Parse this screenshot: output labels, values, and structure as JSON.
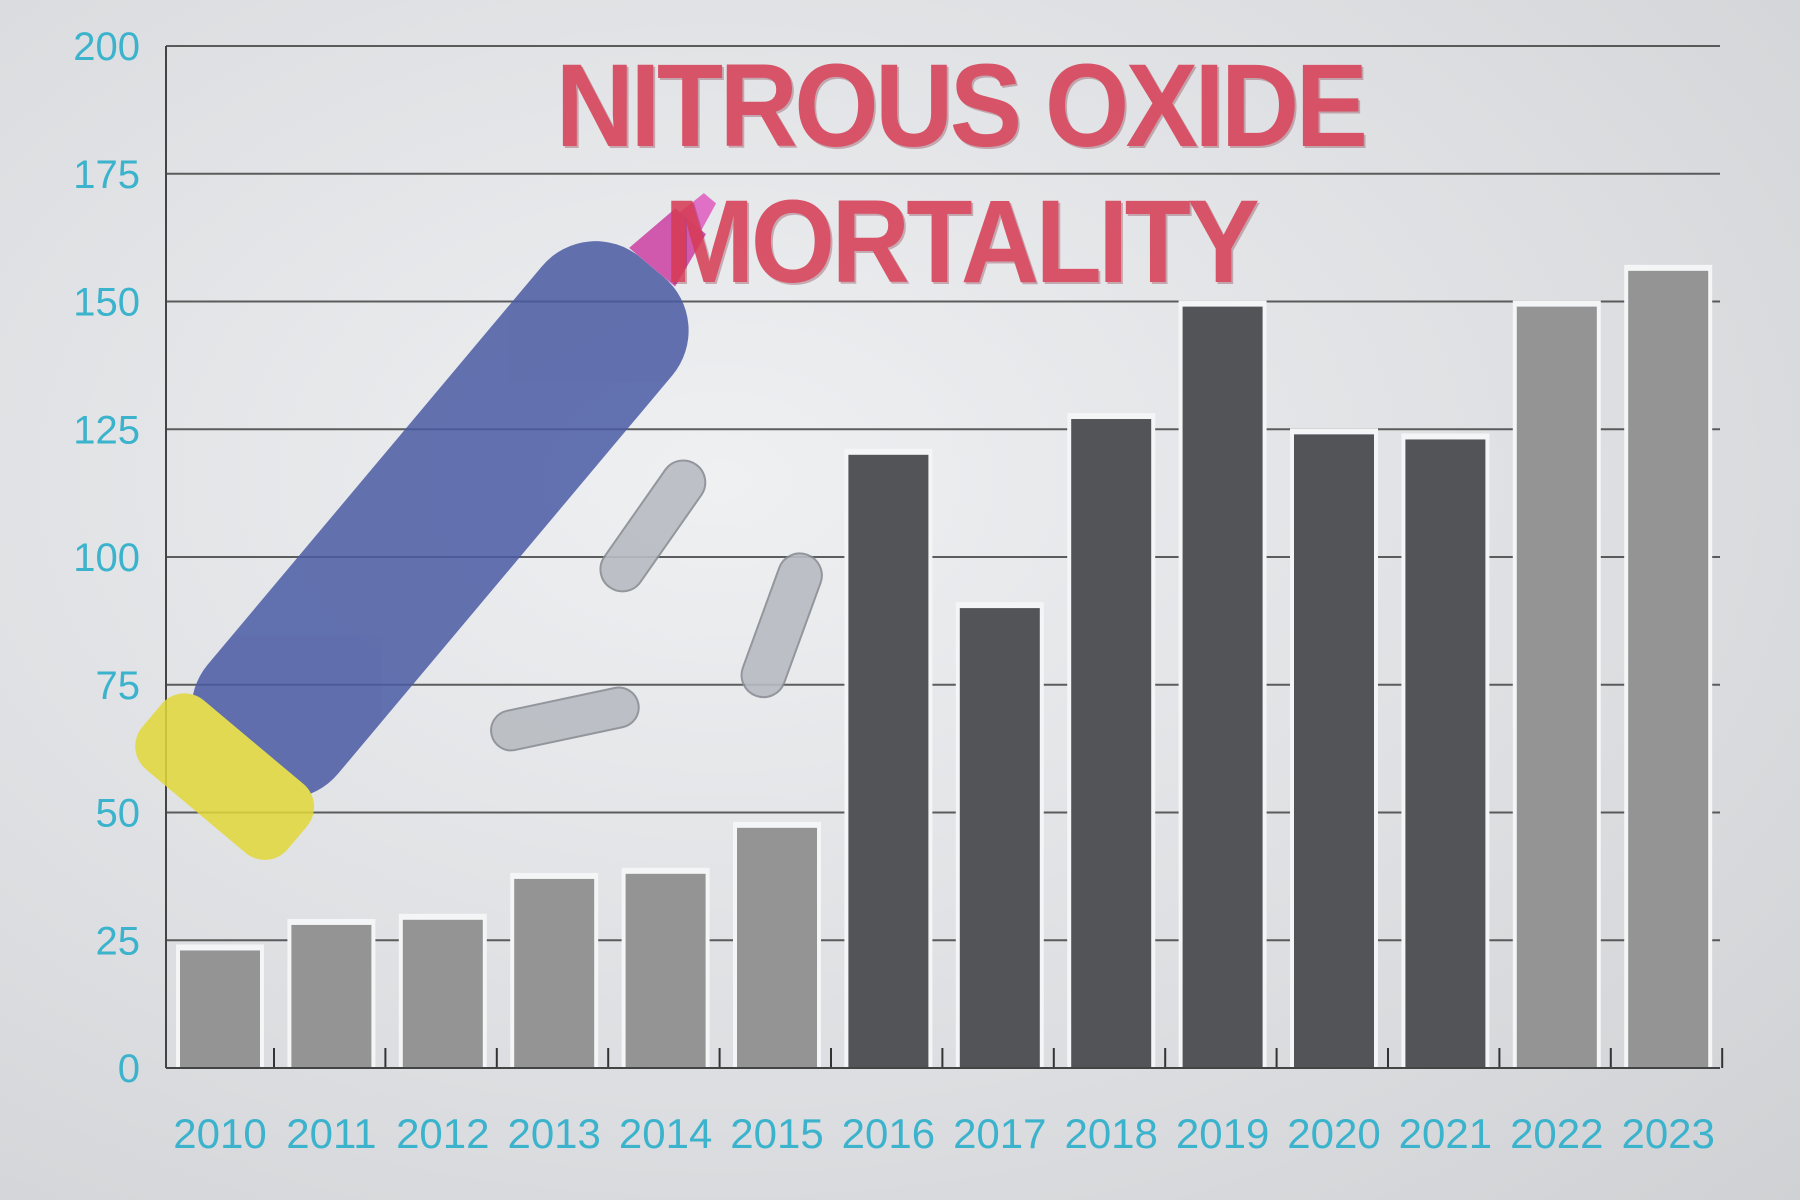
{
  "chart_data": {
    "type": "bar",
    "title": "NITROUS OXIDE MORTALITY",
    "xlabel": "",
    "ylabel": "",
    "categories": [
      "2010",
      "2011",
      "2012",
      "2013",
      "2014",
      "2015",
      "2016",
      "2017",
      "2018",
      "2019",
      "2020",
      "2021",
      "2022",
      "2023"
    ],
    "values": [
      23,
      28,
      29,
      37,
      38,
      47,
      120,
      90,
      127,
      149,
      124,
      123,
      149,
      156
    ],
    "ylim": [
      0,
      200
    ],
    "yticks": [
      0,
      25,
      50,
      75,
      100,
      125,
      150,
      175,
      200
    ],
    "grid": true,
    "legend": "none",
    "colors": {
      "title": "#d63a52",
      "tick_labels": "#3bb3cc",
      "bars_light": "#8a8a8a",
      "bars_dark": "#4a4b4e",
      "gridline": "#3a3a3a"
    }
  }
}
